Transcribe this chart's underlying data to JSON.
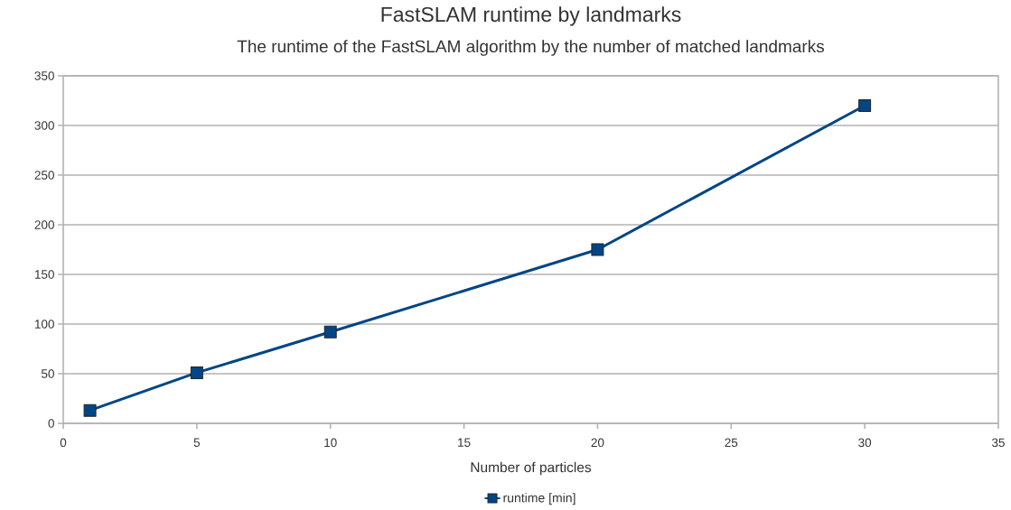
{
  "chart_data": {
    "type": "line",
    "title": "FastSLAM runtime by landmarks",
    "subtitle": "The runtime of the FastSLAM algorithm by the number of matched landmarks",
    "xlabel": "Number of particles",
    "x": [
      1,
      5,
      10,
      20,
      30
    ],
    "series": [
      {
        "name": "runtime [min]",
        "color": "#004586",
        "values": [
          13,
          51,
          92,
          175,
          320
        ]
      }
    ],
    "xlim": [
      0,
      35
    ],
    "ylim": [
      0,
      350
    ],
    "xticks": [
      0,
      5,
      10,
      15,
      20,
      25,
      30,
      35
    ],
    "yticks": [
      0,
      50,
      100,
      150,
      200,
      250,
      300,
      350
    ],
    "grid": "y",
    "legend": "bottom",
    "marker": "square",
    "line_style": "solid"
  }
}
